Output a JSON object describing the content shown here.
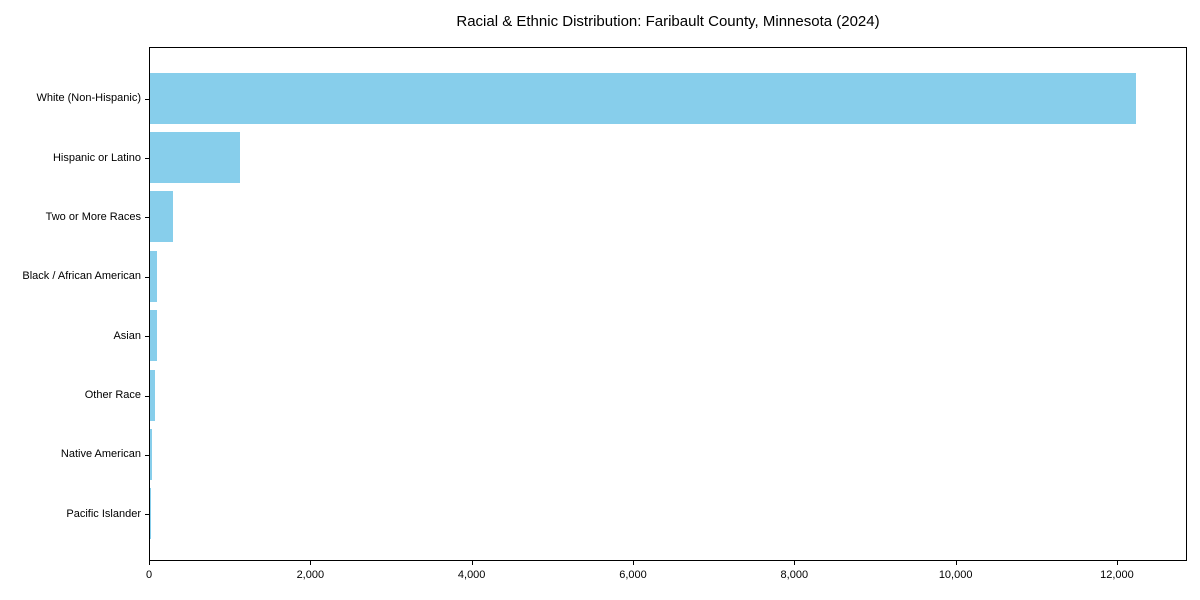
{
  "chart_data": {
    "type": "bar",
    "orientation": "horizontal",
    "title": "Racial & Ethnic Distribution: Faribault County, Minnesota (2024)",
    "categories": [
      "White (Non-Hispanic)",
      "Hispanic or Latino",
      "Two or More Races",
      "Black / African American",
      "Asian",
      "Other Race",
      "Native American",
      "Pacific Islander"
    ],
    "values": [
      12225,
      1115,
      280,
      90,
      85,
      60,
      20,
      3
    ],
    "bar_color": "#87CEEB",
    "xlabel": "",
    "ylabel": "",
    "xlim": [
      0,
      12868
    ],
    "x_ticks": [
      0,
      2000,
      4000,
      6000,
      8000,
      10000,
      12000
    ],
    "x_tick_labels": [
      "0",
      "2,000",
      "4,000",
      "6,000",
      "8,000",
      "10,000",
      "12,000"
    ],
    "grid": false,
    "legend": null,
    "frame_color": "#000000",
    "background_color": "#ffffff"
  }
}
